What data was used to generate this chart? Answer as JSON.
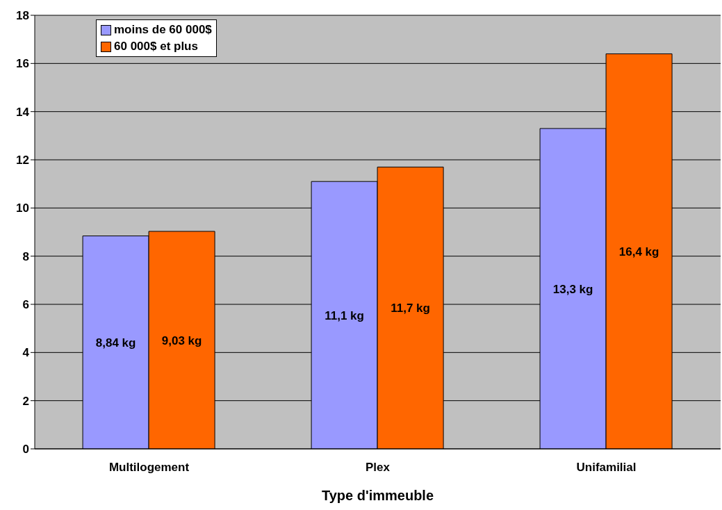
{
  "chart_data": {
    "type": "bar",
    "xlabel": "Type d'immeuble",
    "categories": [
      "Multilogement",
      "Plex",
      "Unifamilial"
    ],
    "series": [
      {
        "name": "moins de 60 000$",
        "color": "#9999ff",
        "values": [
          8.84,
          11.1,
          13.3
        ],
        "value_labels": [
          "8,84 kg",
          "11,1 kg",
          "13,3 kg"
        ]
      },
      {
        "name": "60 000$ et plus",
        "color": "#ff6600",
        "values": [
          9.03,
          11.7,
          16.4
        ],
        "value_labels": [
          "9,03 kg",
          "11,7 kg",
          "16,4 kg"
        ]
      }
    ],
    "ylim": [
      0,
      18
    ],
    "yticks": [
      0,
      2,
      4,
      6,
      8,
      10,
      12,
      14,
      16,
      18
    ],
    "grid": "y",
    "legend": "top left"
  }
}
